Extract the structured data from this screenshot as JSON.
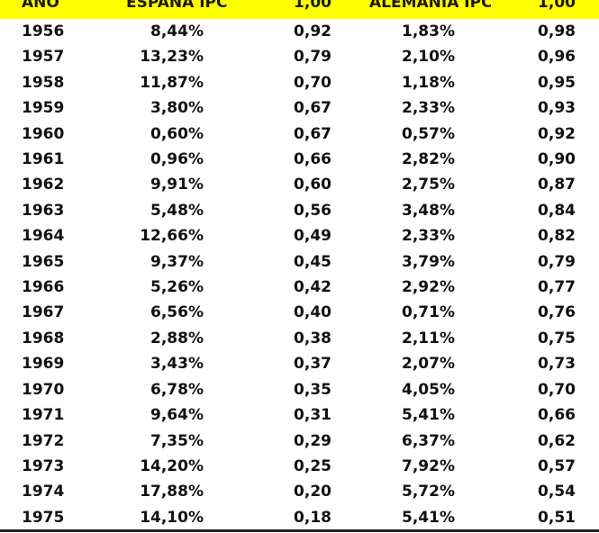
{
  "headers": {
    "year": "AÑO",
    "spain": "ESPAÑA IPC",
    "spain_factor": "1,00",
    "germany": "ALEMANIA IPC",
    "germany_factor": "1,00"
  },
  "rows": [
    {
      "year": "1956",
      "spain": "8,44%",
      "spain_factor": "0,92",
      "germany": "1,83%",
      "germany_factor": "0,98"
    },
    {
      "year": "1957",
      "spain": "13,23%",
      "spain_factor": "0,79",
      "germany": "2,10%",
      "germany_factor": "0,96"
    },
    {
      "year": "1958",
      "spain": "11,87%",
      "spain_factor": "0,70",
      "germany": "1,18%",
      "germany_factor": "0,95"
    },
    {
      "year": "1959",
      "spain": "3,80%",
      "spain_factor": "0,67",
      "germany": "2,33%",
      "germany_factor": "0,93"
    },
    {
      "year": "1960",
      "spain": "0,60%",
      "spain_factor": "0,67",
      "germany": "0,57%",
      "germany_factor": "0,92"
    },
    {
      "year": "1961",
      "spain": "0,96%",
      "spain_factor": "0,66",
      "germany": "2,82%",
      "germany_factor": "0,90"
    },
    {
      "year": "1962",
      "spain": "9,91%",
      "spain_factor": "0,60",
      "germany": "2,75%",
      "germany_factor": "0,87"
    },
    {
      "year": "1963",
      "spain": "5,48%",
      "spain_factor": "0,56",
      "germany": "3,48%",
      "germany_factor": "0,84"
    },
    {
      "year": "1964",
      "spain": "12,66%",
      "spain_factor": "0,49",
      "germany": "2,33%",
      "germany_factor": "0,82"
    },
    {
      "year": "1965",
      "spain": "9,37%",
      "spain_factor": "0,45",
      "germany": "3,79%",
      "germany_factor": "0,79"
    },
    {
      "year": "1966",
      "spain": "5,26%",
      "spain_factor": "0,42",
      "germany": "2,92%",
      "germany_factor": "0,77"
    },
    {
      "year": "1967",
      "spain": "6,56%",
      "spain_factor": "0,40",
      "germany": "0,71%",
      "germany_factor": "0,76"
    },
    {
      "year": "1968",
      "spain": "2,88%",
      "spain_factor": "0,38",
      "germany": "2,11%",
      "germany_factor": "0,75"
    },
    {
      "year": "1969",
      "spain": "3,43%",
      "spain_factor": "0,37",
      "germany": "2,07%",
      "germany_factor": "0,73"
    },
    {
      "year": "1970",
      "spain": "6,78%",
      "spain_factor": "0,35",
      "germany": "4,05%",
      "germany_factor": "0,70"
    },
    {
      "year": "1971",
      "spain": "9,64%",
      "spain_factor": "0,31",
      "germany": "5,41%",
      "germany_factor": "0,66"
    },
    {
      "year": "1972",
      "spain": "7,35%",
      "spain_factor": "0,29",
      "germany": "6,37%",
      "germany_factor": "0,62"
    },
    {
      "year": "1973",
      "spain": "14,20%",
      "spain_factor": "0,25",
      "germany": "7,92%",
      "germany_factor": "0,57"
    },
    {
      "year": "1974",
      "spain": "17,88%",
      "spain_factor": "0,20",
      "germany": "5,72%",
      "germany_factor": "0,54"
    },
    {
      "year": "1975",
      "spain": "14,10%",
      "spain_factor": "0,18",
      "germany": "5,41%",
      "germany_factor": "0,51"
    }
  ],
  "style": {
    "header_background": "#ffff00"
  }
}
